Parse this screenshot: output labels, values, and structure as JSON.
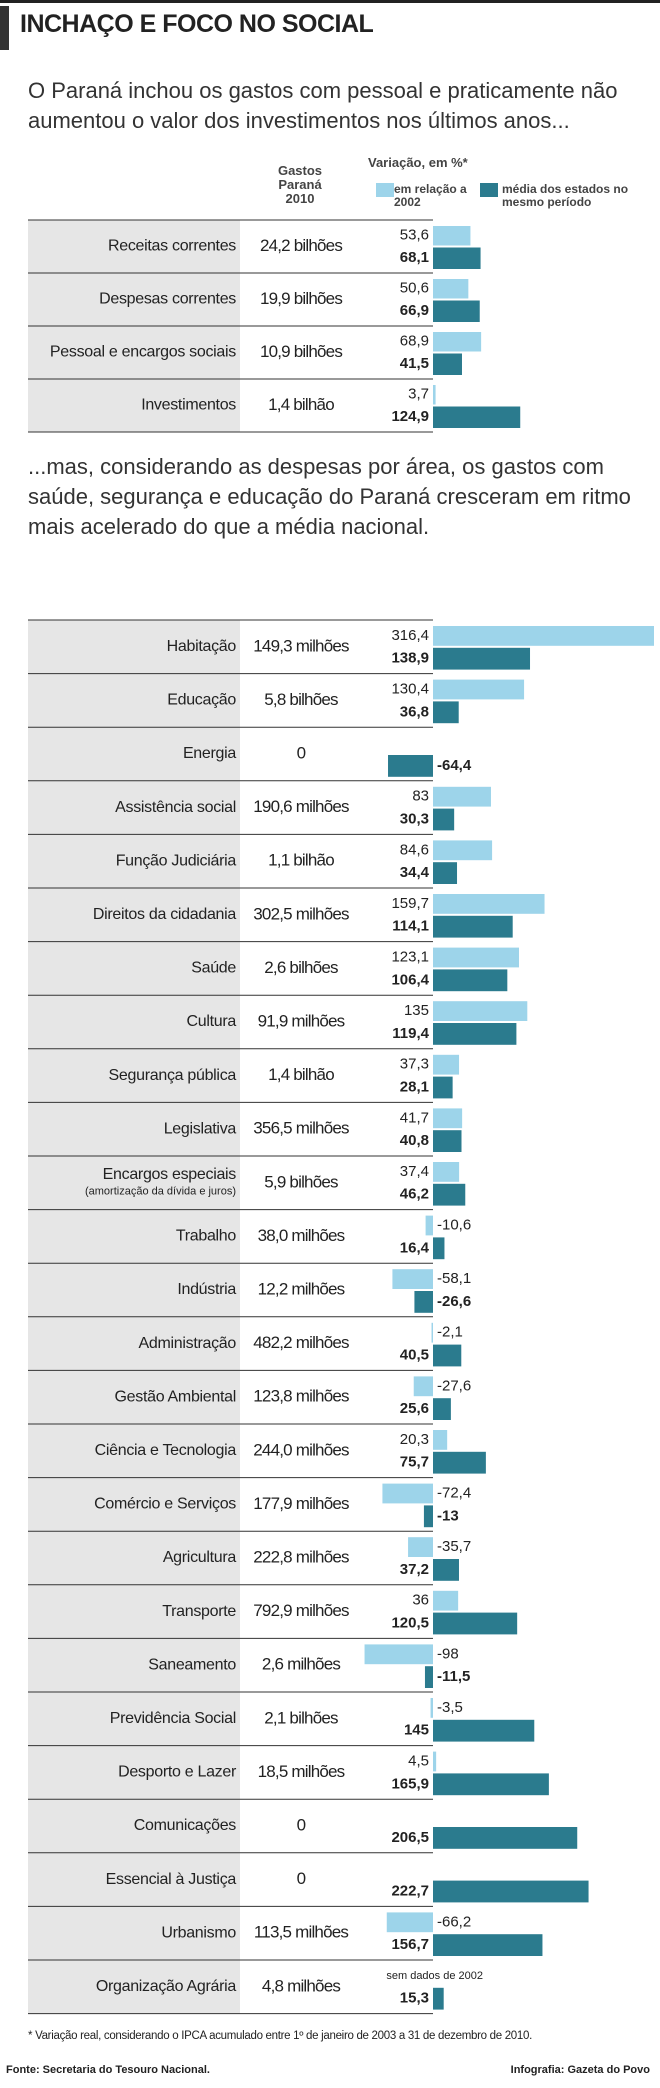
{
  "title": "INCHAÇO E FOCO NO SOCIAL",
  "intro": "O Paraná inchou os gastos com pessoal e praticamente não aumentou o valor dos investimentos nos últimos anos...",
  "middle_text": "...mas, considerando as despesas por área, os gastos com saúde, segurança e educação do Paraná cresceram em ritmo mais acelerado do que a média nacional.",
  "footnote": "* Variação real, considerando o IPCA acumulado entre 1º de janeiro de 2003 a 31 de dezembro de 2010.",
  "source": "Fonte: Secretaria do Tesouro Nacional.",
  "credit": "Infografia: Gazeta do Povo",
  "chart_data": [
    {
      "type": "bar",
      "orientation": "horizontal",
      "gastos_header": "Gastos Paraná 2010",
      "value_header": "Variação, em %*",
      "categories": [
        "Receitas correntes",
        "Despesas correntes",
        "Pessoal e encargos sociais",
        "Investimentos"
      ],
      "gastos": [
        "24,2 bilhões",
        "19,9 bilhões",
        "10,9 bilhões",
        "1,4 bilhão"
      ],
      "series": [
        {
          "name": "em relação a 2002",
          "color": "#9dd4ea",
          "values": [
            53.6,
            50.6,
            68.9,
            3.7
          ],
          "value_labels": [
            "53,6",
            "50,6",
            "68,9",
            "3,7"
          ]
        },
        {
          "name": "média dos estados no mesmo período",
          "color": "#2b7b8e",
          "values": [
            68.1,
            66.9,
            41.5,
            124.9
          ],
          "value_labels": [
            "68,1",
            "66,9",
            "41,5",
            "124,9"
          ]
        }
      ]
    },
    {
      "type": "bar",
      "orientation": "horizontal",
      "categories": [
        "Habitação",
        "Educação",
        "Energia",
        "Assistência social",
        "Função Judiciária",
        "Direitos da cidadania",
        "Saúde",
        "Cultura",
        "Segurança pública",
        "Legislativa",
        "Encargos especiais",
        "Trabalho",
        "Indústria",
        "Administração",
        "Gestão Ambiental",
        "Ciência e Tecnologia",
        "Comércio e Serviços",
        "Agricultura",
        "Transporte",
        "Saneamento",
        "Previdência Social",
        "Desporto e Lazer",
        "Comunicações",
        "Essencial à Justiça",
        "Urbanismo",
        "Organização Agrária"
      ],
      "category_subtitles": [
        null,
        null,
        null,
        null,
        null,
        null,
        null,
        null,
        null,
        null,
        "(amortização da dívida e juros)",
        null,
        null,
        null,
        null,
        null,
        null,
        null,
        null,
        null,
        null,
        null,
        null,
        null,
        null,
        null
      ],
      "gastos": [
        "149,3 milhões",
        "5,8 bilhões",
        "0",
        "190,6 milhões",
        "1,1 bilhão",
        "302,5 milhões",
        "2,6 bilhões",
        "91,9 milhões",
        "1,4 bilhão",
        "356,5 milhões",
        "5,9 bilhões",
        "38,0 milhões",
        "12,2 milhões",
        "482,2 milhões",
        "123,8 milhões",
        "244,0 milhões",
        "177,9 milhões",
        "222,8 milhões",
        "792,9 milhões",
        "2,6 milhões",
        "2,1 bilhões",
        "18,5 milhões",
        "0",
        "0",
        "113,5 milhões",
        "4,8 milhões"
      ],
      "series": [
        {
          "color": "#9dd4ea",
          "values": [
            316.4,
            130.4,
            null,
            83,
            84.6,
            159.7,
            123.1,
            135,
            37.3,
            41.7,
            37.4,
            -10.6,
            -58.1,
            -2.1,
            -27.6,
            20.3,
            -72.4,
            -35.7,
            36,
            -98,
            -3.5,
            4.5,
            null,
            null,
            -66.2,
            null
          ],
          "value_labels": [
            "316,4",
            "130,4",
            null,
            "83",
            "84,6",
            "159,7",
            "123,1",
            "135",
            "37,3",
            "41,7",
            "37,4",
            "-10,6",
            "-58,1",
            "-2,1",
            "-27,6",
            "20,3",
            "-72,4",
            "-35,7",
            "36",
            "-98",
            "-3,5",
            "4,5",
            null,
            null,
            "-66,2",
            "sem dados de 2002"
          ]
        },
        {
          "color": "#2b7b8e",
          "values": [
            138.9,
            36.8,
            -64.4,
            30.3,
            34.4,
            114.1,
            106.4,
            119.4,
            28.1,
            40.8,
            46.2,
            16.4,
            -26.6,
            40.5,
            25.6,
            75.7,
            -13,
            37.2,
            120.5,
            -11.5,
            145,
            165.9,
            206.5,
            222.7,
            156.7,
            15.3
          ],
          "value_labels": [
            "138,9",
            "36,8",
            "-64,4",
            "30,3",
            "34,4",
            "114,1",
            "106,4",
            "119,4",
            "28,1",
            "40,8",
            "46,2",
            "16,4",
            "-26,6",
            "40,5",
            "25,6",
            "75,7",
            "-13",
            "37,2",
            "120,5",
            "-11,5",
            "145",
            "165,9",
            "206,5",
            "222,7",
            "156,7",
            "15,3"
          ]
        }
      ]
    }
  ]
}
